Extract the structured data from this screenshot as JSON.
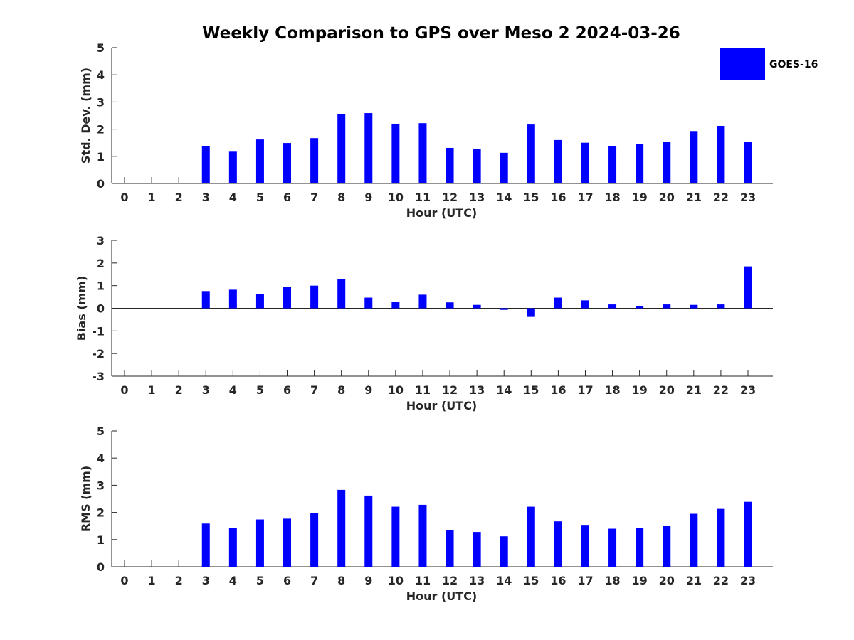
{
  "chart_data": {
    "type": "bar",
    "title": "Weekly Comparison to GPS over Meso 2 2024-03-26",
    "legend": {
      "entries": [
        "GOES-16"
      ],
      "placement": "top-right"
    },
    "series_color": "#0000ff",
    "categories": [
      "0",
      "1",
      "2",
      "3",
      "4",
      "5",
      "6",
      "7",
      "8",
      "9",
      "10",
      "11",
      "12",
      "13",
      "14",
      "15",
      "16",
      "17",
      "18",
      "19",
      "20",
      "21",
      "22",
      "23"
    ],
    "panels": [
      {
        "id": "std",
        "xlabel": "Hour (UTC)",
        "ylabel": "Std. Dev. (mm)",
        "ylim": [
          0,
          5
        ],
        "yticks": [
          "0",
          "1",
          "2",
          "3",
          "4",
          "5"
        ],
        "series": [
          {
            "name": "GOES-16",
            "values": [
              null,
              null,
              null,
              1.38,
              1.17,
              1.62,
              1.49,
              1.67,
              2.55,
              2.59,
              2.2,
              2.22,
              1.31,
              1.26,
              1.13,
              2.17,
              1.6,
              1.5,
              1.38,
              1.44,
              1.52,
              1.93,
              2.12,
              1.52
            ]
          }
        ]
      },
      {
        "id": "bias",
        "xlabel": "Hour (UTC)",
        "ylabel": "Bias (mm)",
        "ylim": [
          -3,
          3
        ],
        "yticks": [
          "-3",
          "-2",
          "-1",
          "0",
          "1",
          "2",
          "3"
        ],
        "series": [
          {
            "name": "GOES-16",
            "values": [
              null,
              null,
              null,
              0.76,
              0.82,
              0.63,
              0.95,
              1.0,
              1.28,
              0.47,
              0.28,
              0.6,
              0.26,
              0.15,
              -0.07,
              -0.38,
              0.47,
              0.35,
              0.17,
              0.1,
              0.17,
              0.15,
              0.17,
              1.85
            ]
          }
        ]
      },
      {
        "id": "rms",
        "xlabel": "Hour (UTC)",
        "ylabel": "RMS (mm)",
        "ylim": [
          0,
          5
        ],
        "yticks": [
          "0",
          "1",
          "2",
          "3",
          "4",
          "5"
        ],
        "series": [
          {
            "name": "GOES-16",
            "values": [
              null,
              null,
              null,
              1.59,
              1.43,
              1.74,
              1.77,
              1.98,
              2.83,
              2.62,
              2.21,
              2.28,
              1.35,
              1.28,
              1.12,
              2.21,
              1.67,
              1.54,
              1.4,
              1.44,
              1.51,
              1.95,
              2.13,
              2.39
            ]
          }
        ]
      }
    ]
  }
}
